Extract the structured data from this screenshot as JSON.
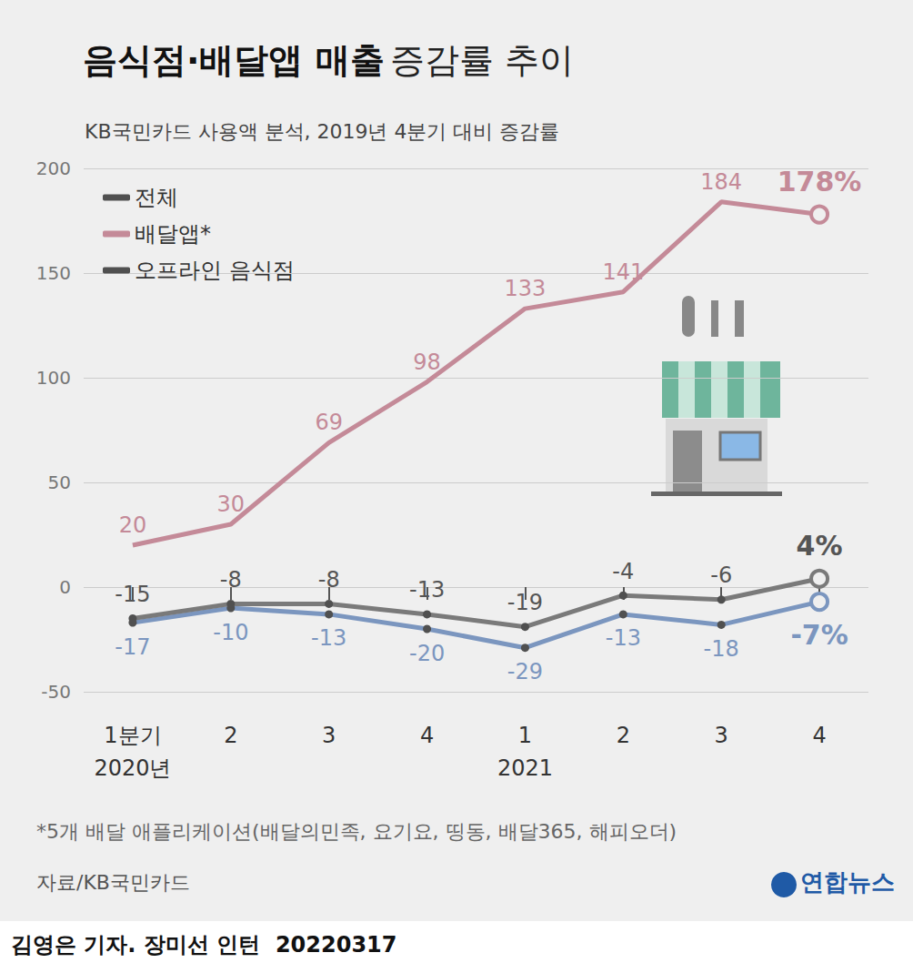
{
  "chart_data": {
    "type": "line",
    "title": "음식점·배달앱 매출 증감률 추이",
    "subtitle": "KB국민카드 사용액 분석, 2019년 4분기 대비 증감률",
    "categories": [
      "1분기\n2020년",
      "2",
      "3",
      "4",
      "1\n2021",
      "2",
      "3",
      "4"
    ],
    "series": [
      {
        "name": "전체",
        "color": "#7a7a7a",
        "marker": "circle",
        "values": [
          -15,
          -8,
          -8,
          -13,
          -19,
          -4,
          -6,
          4
        ],
        "value_labels": [
          "-15",
          "-8",
          "-8",
          "-13",
          "-19",
          "-4",
          "-6",
          "4%"
        ]
      },
      {
        "name": "배달앱*",
        "color": "#c48a98",
        "marker": "none",
        "values": [
          20,
          30,
          69,
          98,
          133,
          141,
          184,
          178
        ],
        "value_labels": [
          "20",
          "30",
          "69",
          "98",
          "133",
          "141",
          "184",
          "178%"
        ]
      },
      {
        "name": "오프라인 음식점",
        "color": "#7b96bf",
        "marker": "circle",
        "values": [
          -17,
          -10,
          -13,
          -20,
          -29,
          -13,
          -18,
          -7
        ],
        "value_labels": [
          "-17",
          "-10",
          "-13",
          "-20",
          "-29",
          "-13",
          "-18",
          "-7%"
        ]
      }
    ],
    "ylim": [
      -50,
      200
    ],
    "yticks": [
      -50,
      0,
      50,
      100,
      150,
      200
    ],
    "grid": true,
    "legend": "upper left",
    "data_labels": true,
    "note": "*5개 배달 애플리케이션(배달의민족, 요기요, 띵동, 배달365, 해피오더)",
    "source": "자료/KB국민카드",
    "logo": "연합뉴스",
    "credit": "김영은 기자. 장미선 인턴  20220317"
  }
}
